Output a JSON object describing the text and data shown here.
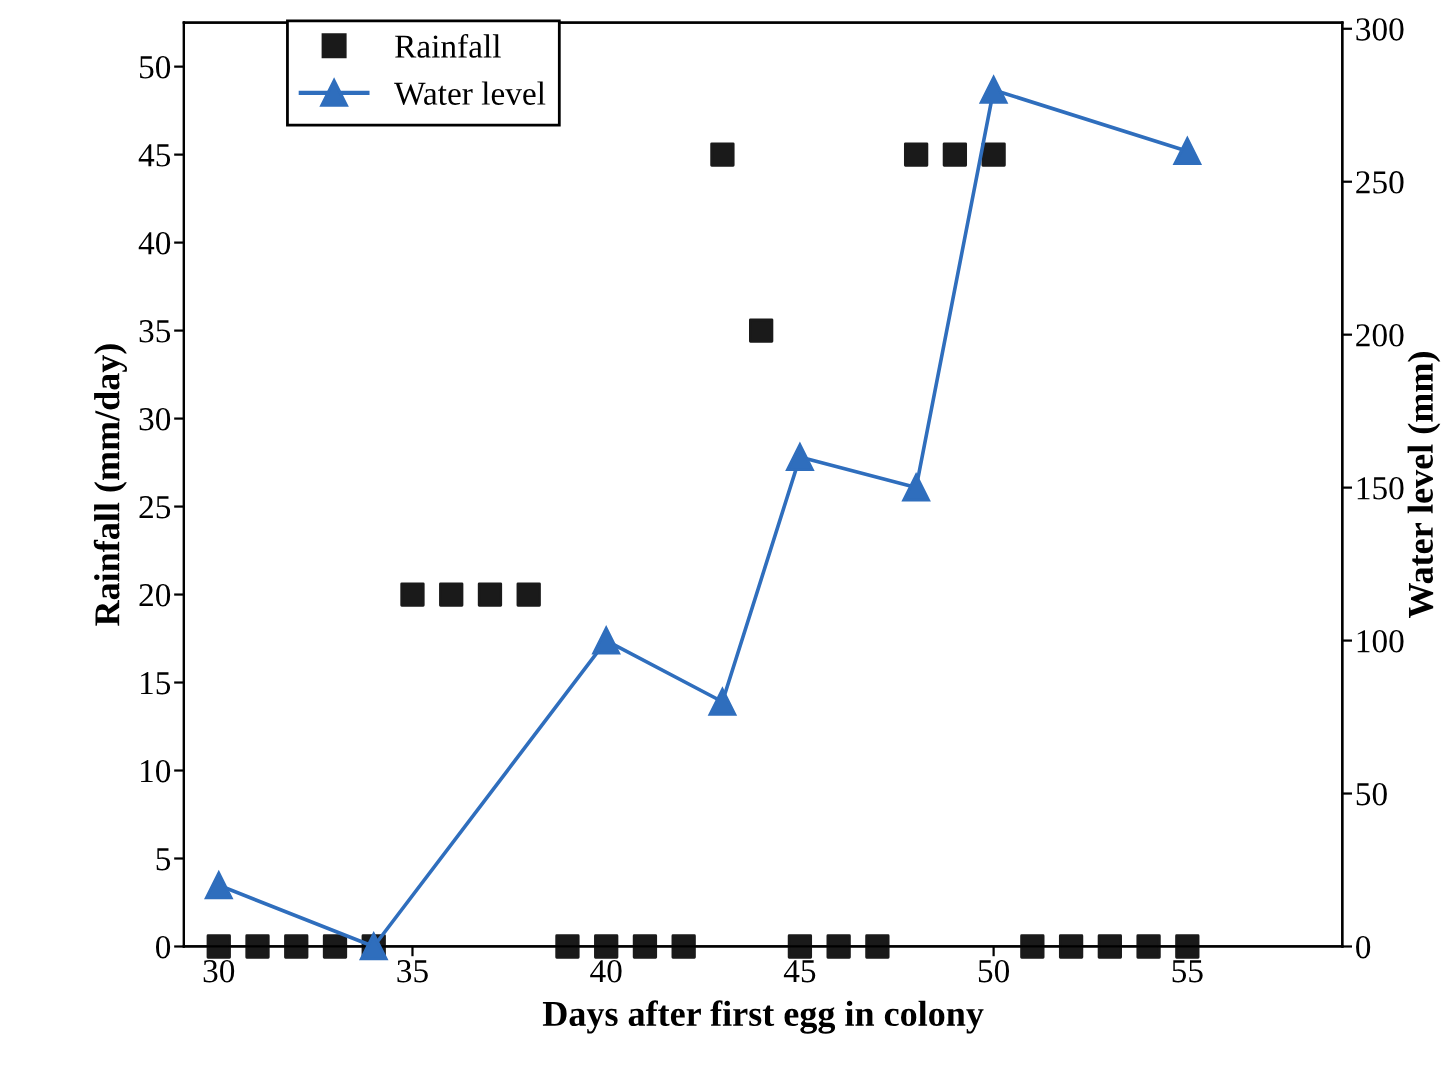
{
  "chart_data": {
    "type": "scatter",
    "xlabel": "Days after first egg in colony",
    "ylabel": "Rainfall (mm/day)",
    "y2label": "Water level (mm)",
    "xlim": [
      29.1,
      59
    ],
    "xticks": [
      30,
      35,
      40,
      45,
      50,
      55
    ],
    "ylim": [
      0,
      52.5
    ],
    "yticks": [
      0,
      5,
      10,
      15,
      20,
      25,
      30,
      35,
      40,
      45,
      50
    ],
    "y2lim": [
      0,
      302
    ],
    "y2ticks": [
      0,
      50,
      100,
      150,
      200,
      250,
      300
    ],
    "legend": "top left",
    "grid": false,
    "series": [
      {
        "name": "Rainfall",
        "marker": "square",
        "color": "#1a1a1a",
        "x": [
          30,
          31,
          32,
          33,
          34,
          35,
          36,
          37,
          38,
          39,
          40,
          41,
          42,
          43,
          44,
          45,
          46,
          47,
          48,
          49,
          50,
          51,
          52,
          53,
          54,
          55
        ],
        "values": [
          0,
          0,
          0,
          0,
          0,
          20,
          20,
          20,
          20,
          0,
          0,
          0,
          0,
          45,
          35,
          0,
          0,
          0,
          45,
          45,
          45,
          0,
          0,
          0,
          0,
          0
        ]
      },
      {
        "name": "Water level",
        "type": "line",
        "marker": "triangle",
        "line_style": "solid",
        "axis": "y2",
        "color": "#2f6ebd",
        "x": [
          30,
          34,
          40,
          43,
          45,
          48,
          50,
          55
        ],
        "values": [
          20,
          0,
          100,
          80,
          160,
          150,
          280,
          260
        ]
      }
    ]
  }
}
